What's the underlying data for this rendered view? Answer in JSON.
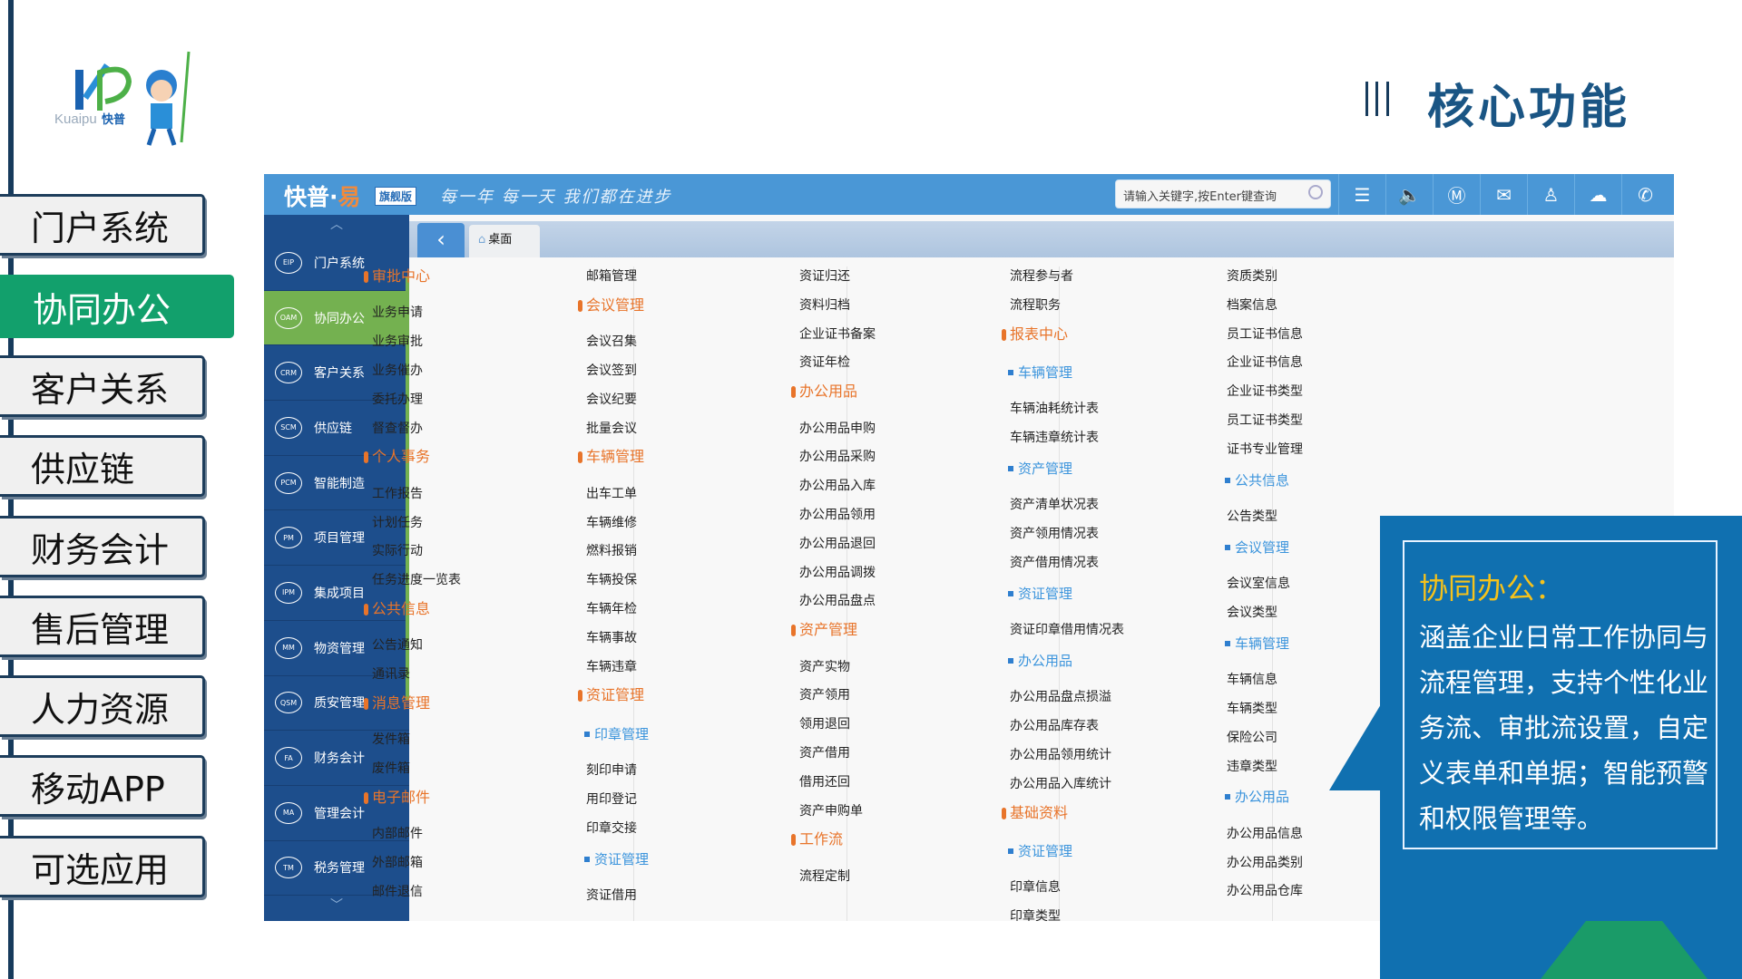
{
  "logo": {
    "text": "Kuaipu",
    "cn": "快普"
  },
  "left_nav": [
    {
      "label": "门户系统",
      "active": false
    },
    {
      "label": "协同办公",
      "active": true
    },
    {
      "label": "客户关系",
      "active": false
    },
    {
      "label": "供应链",
      "active": false
    },
    {
      "label": "财务会计",
      "active": false
    },
    {
      "label": "售后管理",
      "active": false
    },
    {
      "label": "人力资源",
      "active": false
    },
    {
      "label": "移动APP",
      "active": false
    },
    {
      "label": "可选应用",
      "active": false
    }
  ],
  "title": "核心功能",
  "app": {
    "brand": "快普·",
    "brand_yi": "易",
    "badge": "旗舰版",
    "slogan": "每一年 每一天 我们都在进步",
    "search_placeholder": "请输入关键字,按Enter键查询",
    "header_icons": [
      "list-icon",
      "speaker-icon",
      "im-icon",
      "mail-icon",
      "user-icon",
      "cloud-icon",
      "phone-icon"
    ],
    "sidebar": [
      {
        "code": "EIP",
        "label": "门户系统"
      },
      {
        "code": "OAM",
        "label": "协同办公",
        "active": true
      },
      {
        "code": "CRM",
        "label": "客户关系"
      },
      {
        "code": "SCM",
        "label": "供应链"
      },
      {
        "code": "PCM",
        "label": "智能制造"
      },
      {
        "code": "PM",
        "label": "项目管理"
      },
      {
        "code": "IPM",
        "label": "集成项目"
      },
      {
        "code": "MM",
        "label": "物资管理"
      },
      {
        "code": "QSM",
        "label": "质安管理"
      },
      {
        "code": "FA",
        "label": "财务会计"
      },
      {
        "code": "MA",
        "label": "管理会计"
      },
      {
        "code": "TM",
        "label": "税务管理"
      }
    ],
    "tab_label": "桌面",
    "colors": {
      "header": "#4a97d6",
      "sidebar": "#1d4e8c",
      "active": "#74b150",
      "section": "#e8742a",
      "subsection": "#3b94dc"
    },
    "columns": [
      [
        {
          "k": "h",
          "t": "审批中心"
        },
        {
          "k": "i",
          "t": "业务申请"
        },
        {
          "k": "i",
          "t": "业务审批"
        },
        {
          "k": "i",
          "t": "业务催办"
        },
        {
          "k": "i",
          "t": "委托办理"
        },
        {
          "k": "i",
          "t": "督查督办"
        },
        {
          "k": "h",
          "t": "个人事务"
        },
        {
          "k": "i",
          "t": "工作报告"
        },
        {
          "k": "i",
          "t": "计划任务"
        },
        {
          "k": "i",
          "t": "实际行动"
        },
        {
          "k": "i",
          "t": "任务进度一览表"
        },
        {
          "k": "h",
          "t": "公共信息"
        },
        {
          "k": "i",
          "t": "公告通知"
        },
        {
          "k": "i",
          "t": "通讯录"
        },
        {
          "k": "h",
          "t": "消息管理"
        },
        {
          "k": "i",
          "t": "发件箱"
        },
        {
          "k": "i",
          "t": "废件箱"
        },
        {
          "k": "h",
          "t": "电子邮件"
        },
        {
          "k": "i",
          "t": "内部邮件"
        },
        {
          "k": "i",
          "t": "外部邮箱"
        },
        {
          "k": "i",
          "t": "邮件退信"
        }
      ],
      [
        {
          "k": "i",
          "t": "邮箱管理"
        },
        {
          "k": "h",
          "t": "会议管理"
        },
        {
          "k": "i",
          "t": "会议召集"
        },
        {
          "k": "i",
          "t": "会议签到"
        },
        {
          "k": "i",
          "t": "会议纪要"
        },
        {
          "k": "i",
          "t": "批量会议"
        },
        {
          "k": "h",
          "t": "车辆管理"
        },
        {
          "k": "i",
          "t": "出车工单"
        },
        {
          "k": "i",
          "t": "车辆维修"
        },
        {
          "k": "i",
          "t": "燃料报销"
        },
        {
          "k": "i",
          "t": "车辆投保"
        },
        {
          "k": "i",
          "t": "车辆年检"
        },
        {
          "k": "i",
          "t": "车辆事故"
        },
        {
          "k": "i",
          "t": "车辆违章"
        },
        {
          "k": "h",
          "t": "资证管理"
        },
        {
          "k": "s",
          "t": "印章管理"
        },
        {
          "k": "i",
          "t": "刻印申请"
        },
        {
          "k": "i",
          "t": "用印登记"
        },
        {
          "k": "i",
          "t": "印章交接"
        },
        {
          "k": "s",
          "t": "资证管理"
        },
        {
          "k": "i",
          "t": "资证借用"
        }
      ],
      [
        {
          "k": "i",
          "t": "资证归还"
        },
        {
          "k": "i",
          "t": "资料归档"
        },
        {
          "k": "i",
          "t": "企业证书备案"
        },
        {
          "k": "i",
          "t": "资证年检"
        },
        {
          "k": "h",
          "t": "办公用品"
        },
        {
          "k": "i",
          "t": "办公用品申购"
        },
        {
          "k": "i",
          "t": "办公用品采购"
        },
        {
          "k": "i",
          "t": "办公用品入库"
        },
        {
          "k": "i",
          "t": "办公用品领用"
        },
        {
          "k": "i",
          "t": "办公用品退回"
        },
        {
          "k": "i",
          "t": "办公用品调拨"
        },
        {
          "k": "i",
          "t": "办公用品盘点"
        },
        {
          "k": "h",
          "t": "资产管理"
        },
        {
          "k": "i",
          "t": "资产实物"
        },
        {
          "k": "i",
          "t": "资产领用"
        },
        {
          "k": "i",
          "t": "领用退回"
        },
        {
          "k": "i",
          "t": "资产借用"
        },
        {
          "k": "i",
          "t": "借用还回"
        },
        {
          "k": "i",
          "t": "资产申购单"
        },
        {
          "k": "h",
          "t": "工作流"
        },
        {
          "k": "i",
          "t": "流程定制"
        }
      ],
      [
        {
          "k": "i",
          "t": "流程参与者"
        },
        {
          "k": "i",
          "t": "流程职务"
        },
        {
          "k": "h",
          "t": "报表中心"
        },
        {
          "k": "s",
          "t": "车辆管理"
        },
        {
          "k": "i",
          "t": "车辆油耗统计表"
        },
        {
          "k": "i",
          "t": "车辆违章统计表"
        },
        {
          "k": "s",
          "t": "资产管理"
        },
        {
          "k": "i",
          "t": "资产清单状况表"
        },
        {
          "k": "i",
          "t": "资产领用情况表"
        },
        {
          "k": "i",
          "t": "资产借用情况表"
        },
        {
          "k": "s",
          "t": "资证管理"
        },
        {
          "k": "i",
          "t": "资证印章借用情况表"
        },
        {
          "k": "s",
          "t": "办公用品"
        },
        {
          "k": "i",
          "t": "办公用品盘点损溢"
        },
        {
          "k": "i",
          "t": "办公用品库存表"
        },
        {
          "k": "i",
          "t": "办公用品领用统计"
        },
        {
          "k": "i",
          "t": "办公用品入库统计"
        },
        {
          "k": "h",
          "t": "基础资料"
        },
        {
          "k": "s",
          "t": "资证管理"
        },
        {
          "k": "i",
          "t": "印章信息"
        },
        {
          "k": "i",
          "t": "印章类型"
        }
      ],
      [
        {
          "k": "i",
          "t": "资质类别"
        },
        {
          "k": "i",
          "t": "档案信息"
        },
        {
          "k": "i",
          "t": "员工证书信息"
        },
        {
          "k": "i",
          "t": "企业证书信息"
        },
        {
          "k": "i",
          "t": "企业证书类型"
        },
        {
          "k": "i",
          "t": "员工证书类型"
        },
        {
          "k": "i",
          "t": "证书专业管理"
        },
        {
          "k": "s",
          "t": "公共信息"
        },
        {
          "k": "i",
          "t": "公告类型"
        },
        {
          "k": "s",
          "t": "会议管理"
        },
        {
          "k": "i",
          "t": "会议室信息"
        },
        {
          "k": "i",
          "t": "会议类型"
        },
        {
          "k": "s",
          "t": "车辆管理"
        },
        {
          "k": "i",
          "t": "车辆信息"
        },
        {
          "k": "i",
          "t": "车辆类型"
        },
        {
          "k": "i",
          "t": "保险公司"
        },
        {
          "k": "i",
          "t": "违章类型"
        },
        {
          "k": "s",
          "t": "办公用品"
        },
        {
          "k": "i",
          "t": "办公用品信息"
        },
        {
          "k": "i",
          "t": "办公用品类别"
        },
        {
          "k": "i",
          "t": "办公用品仓库"
        }
      ]
    ]
  },
  "callout": {
    "title": "协同办公：",
    "body": "涵盖企业日常工作协同与流程管理，支持个性化业务流、审批流设置，自定义表单和单据；智能预警和权限管理等。"
  }
}
